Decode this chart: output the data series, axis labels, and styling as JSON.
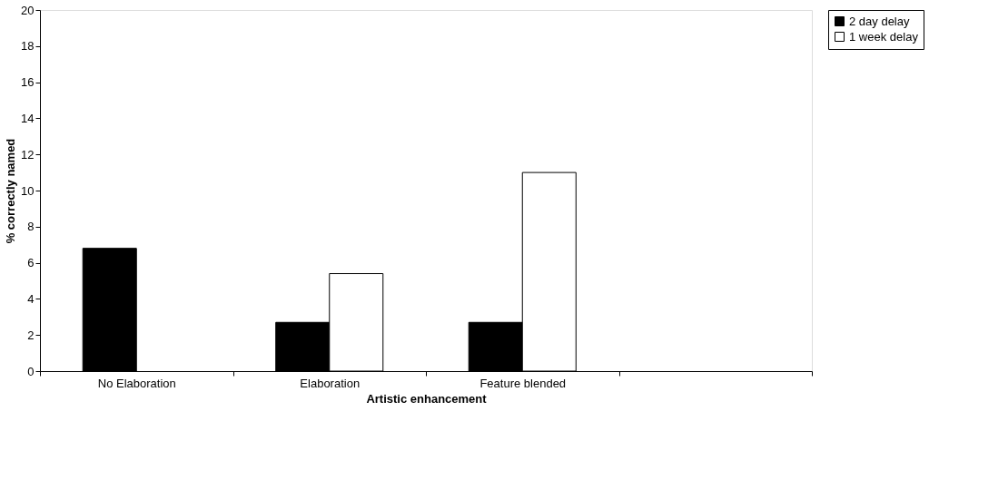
{
  "chart_data": {
    "type": "bar",
    "xlabel": "Artistic enhancement",
    "ylabel": "% correctly named",
    "categories": [
      "No Elaboration",
      "Elaboration",
      "Feature blended",
      null
    ],
    "series": [
      {
        "name": "2 day delay",
        "color": "#000000",
        "values": [
          6.8,
          2.7,
          2.7,
          null
        ]
      },
      {
        "name": "1 week delay",
        "color": "#ffffff",
        "values": [
          null,
          5.4,
          11.0,
          null
        ]
      }
    ],
    "ylim": [
      0,
      20
    ],
    "yticks": [
      0,
      2,
      4,
      6,
      8,
      10,
      12,
      14,
      16,
      18,
      20
    ],
    "grid": false,
    "legend": "right"
  }
}
